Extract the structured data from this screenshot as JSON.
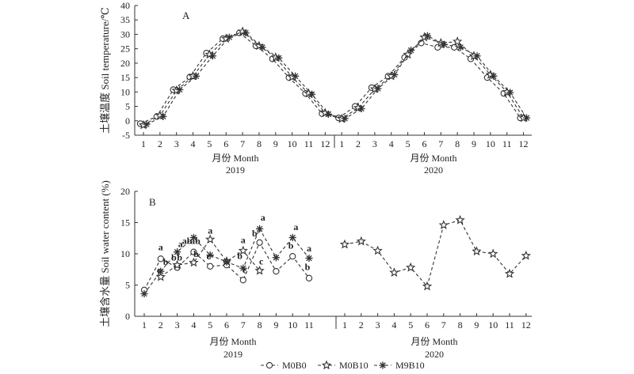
{
  "chart_data": [
    {
      "panel": "A",
      "type": "line",
      "ylabel": "土壤温度 Soil temperature/℃",
      "ylim": [
        -5,
        40
      ],
      "yticks": [
        -5,
        0,
        5,
        10,
        15,
        20,
        25,
        30,
        35,
        40
      ],
      "x_ticks": [
        "1",
        "2",
        "3",
        "4",
        "5",
        "6",
        "7",
        "8",
        "9",
        "10",
        "11",
        "12",
        "1",
        "2",
        "3",
        "4",
        "5",
        "6",
        "7",
        "8",
        "9",
        "10",
        "11",
        "12"
      ],
      "xlabel_groups": [
        {
          "label": "月份 Month",
          "year": "2019"
        },
        {
          "label": "月份 Month",
          "year": "2020"
        }
      ],
      "series": [
        {
          "name": "M0B0",
          "marker": "circle",
          "values": [
            -1,
            1.5,
            10.8,
            15.2,
            23.5,
            28.5,
            30.5,
            26,
            21.5,
            15,
            9.5,
            2.5,
            1,
            5,
            11.5,
            15.5,
            22,
            27,
            25.5,
            25.5,
            21.5,
            15,
            9.5,
            1
          ]
        },
        {
          "name": "M0B10",
          "marker": "star",
          "values": [
            -1.5,
            1.8,
            10.5,
            15.5,
            23,
            28.5,
            31,
            26,
            22,
            15.2,
            9.5,
            2.7,
            0.7,
            4.5,
            11,
            15.5,
            23,
            29,
            27,
            27.5,
            22.5,
            16,
            10,
            1
          ]
        },
        {
          "name": "M9B10",
          "marker": "asterisk",
          "values": [
            -1.2,
            1.5,
            10.8,
            15.5,
            22.5,
            29,
            30.5,
            25.5,
            21.8,
            15.5,
            9.2,
            2.3,
            0.8,
            4.2,
            11.2,
            16,
            24.5,
            29.5,
            26.5,
            25.5,
            22.5,
            15.5,
            9.8,
            1
          ]
        }
      ]
    },
    {
      "panel": "B",
      "type": "line",
      "ylabel": "土壤含水量 Soil water content (%)",
      "ylim": [
        0,
        20
      ],
      "yticks": [
        0,
        5,
        10,
        15,
        20
      ],
      "x_ticks": [
        "1",
        "2",
        "3",
        "4",
        "5",
        "6",
        "7",
        "8",
        "9",
        "10",
        "11",
        "1",
        "2",
        "3",
        "4",
        "5",
        "6",
        "7",
        "8",
        "9",
        "10",
        "11",
        "12"
      ],
      "xlabel_groups": [
        {
          "label": "月份 Month",
          "year": "2019"
        },
        {
          "label": "月份 Month",
          "year": "2020"
        }
      ],
      "series": [
        {
          "name": "M0B0",
          "marker": "circle",
          "x": [
            1,
            2,
            3,
            4,
            5,
            6,
            7,
            8,
            9,
            10,
            11
          ],
          "values": [
            4.2,
            9.2,
            7.8,
            10.3,
            8,
            8.2,
            5.8,
            11.8,
            7.2,
            9.6,
            6.1
          ]
        },
        {
          "name": "M0B10",
          "marker": "star",
          "x": [
            1,
            2,
            3,
            4,
            5,
            6,
            7,
            8,
            9,
            10,
            11,
            12
          ],
          "values": [
            11.5,
            12,
            10.5,
            7,
            7.8,
            4.8,
            14.6,
            15.4,
            10.4,
            10,
            6.8,
            9.7
          ]
        },
        {
          "name": "M0B10",
          "marker": "star",
          "part": "2019",
          "x": [
            2,
            3,
            4,
            5,
            6,
            7,
            8
          ],
          "values": [
            6.3,
            8.2,
            8.6,
            12.3,
            8.8,
            10.5,
            7.3
          ]
        },
        {
          "name": "M9B10",
          "marker": "asterisk",
          "x": [
            1,
            2,
            3,
            4,
            5,
            6,
            7,
            8,
            9,
            10,
            11
          ],
          "values": [
            3.6,
            7.2,
            10.3,
            12.6,
            9.8,
            8.7,
            7.7,
            14,
            9.4,
            12.6,
            9.3
          ]
        }
      ],
      "annotations": [
        {
          "text": "a",
          "x": 2,
          "y": 10.6
        },
        {
          "text": "b",
          "x": 2.3,
          "y": 8.2
        },
        {
          "text": "c",
          "x": 1.9,
          "y": 6.9
        },
        {
          "text": "b",
          "x": 2.8,
          "y": 8.9
        },
        {
          "text": "b",
          "x": 3.15,
          "y": 8.9
        },
        {
          "text": "a",
          "x": 3.2,
          "y": 11.1
        },
        {
          "text": "ab",
          "x": 3.6,
          "y": 11.6
        },
        {
          "text": "ab",
          "x": 4.1,
          "y": 11.6
        },
        {
          "text": "b",
          "x": 4.15,
          "y": 9.5
        },
        {
          "text": "a",
          "x": 5,
          "y": 13.2
        },
        {
          "text": "c",
          "x": 4.9,
          "y": 9.1
        },
        {
          "text": "a",
          "x": 7,
          "y": 11.7
        },
        {
          "text": "b",
          "x": 6.8,
          "y": 9.2
        },
        {
          "text": "c",
          "x": 7.1,
          "y": 6.9
        },
        {
          "text": "a",
          "x": 8.2,
          "y": 15.3
        },
        {
          "text": "b",
          "x": 7.7,
          "y": 12.8
        },
        {
          "text": "c",
          "x": 8.1,
          "y": 8.3
        },
        {
          "text": "a",
          "x": 10.2,
          "y": 13.8
        },
        {
          "text": "b",
          "x": 9.9,
          "y": 10.8
        },
        {
          "text": "a",
          "x": 11,
          "y": 10.4
        },
        {
          "text": "b",
          "x": 10.9,
          "y": 7.4
        }
      ]
    }
  ],
  "legend": [
    {
      "name": "M0B0",
      "marker": "circle"
    },
    {
      "name": "M0B10",
      "marker": "star"
    },
    {
      "name": "M9B10",
      "marker": "asterisk"
    }
  ]
}
